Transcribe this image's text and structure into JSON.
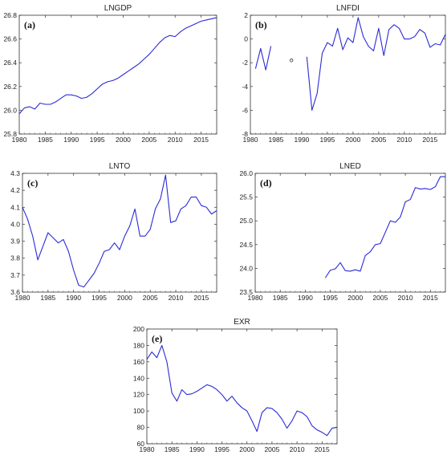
{
  "style": {
    "line_color": "#2b2bd6",
    "axis_color": "#333333"
  },
  "chart_data": [
    {
      "type": "line",
      "title": "LNGDP",
      "panel_label": "(a)",
      "xlim": [
        1980,
        2018
      ],
      "ylim": [
        25.8,
        26.8
      ],
      "xticks": [
        1980,
        1985,
        1990,
        1995,
        2000,
        2005,
        2010,
        2015
      ],
      "yticks": [
        "25.8",
        "26.0",
        "26.2",
        "26.4",
        "26.6",
        "26.8"
      ],
      "x": [
        1980,
        1981,
        1982,
        1983,
        1984,
        1985,
        1986,
        1987,
        1988,
        1989,
        1990,
        1991,
        1992,
        1993,
        1994,
        1995,
        1996,
        1997,
        1998,
        1999,
        2000,
        2001,
        2002,
        2003,
        2004,
        2005,
        2006,
        2007,
        2008,
        2009,
        2010,
        2011,
        2012,
        2013,
        2014,
        2015,
        2016,
        2017,
        2018
      ],
      "y": [
        25.97,
        26.02,
        26.03,
        26.01,
        26.06,
        26.05,
        26.05,
        26.07,
        26.1,
        26.13,
        26.13,
        26.12,
        26.1,
        26.11,
        26.14,
        26.18,
        26.22,
        26.24,
        26.25,
        26.27,
        26.3,
        26.33,
        26.36,
        26.39,
        26.43,
        26.47,
        26.52,
        26.57,
        26.61,
        26.63,
        26.62,
        26.66,
        26.69,
        26.71,
        26.73,
        26.75,
        26.76,
        26.77,
        26.78
      ]
    },
    {
      "type": "line",
      "title": "LNFDI",
      "panel_label": "(b)",
      "xlim": [
        1980,
        2018
      ],
      "ylim": [
        -8,
        2
      ],
      "xticks": [
        1980,
        1985,
        1990,
        1995,
        2000,
        2005,
        2010,
        2015
      ],
      "yticks": [
        "-8",
        "-6",
        "-4",
        "-2",
        "0",
        "2"
      ],
      "x": [
        1980,
        1981,
        1982,
        1983,
        1984,
        1985,
        1986,
        1987,
        1988,
        1989,
        1990,
        1991,
        1992,
        1993,
        1994,
        1995,
        1996,
        1997,
        1998,
        1999,
        2000,
        2001,
        2002,
        2003,
        2004,
        2005,
        2006,
        2007,
        2008,
        2009,
        2010,
        2011,
        2012,
        2013,
        2014,
        2015,
        2016,
        2017,
        2018
      ],
      "y": [
        null,
        -2.5,
        -0.8,
        -2.6,
        -0.6,
        null,
        null,
        null,
        -1.8,
        null,
        null,
        -1.5,
        -6.0,
        -4.6,
        -1.2,
        -0.3,
        -0.6,
        0.9,
        -0.9,
        0.1,
        -0.3,
        1.8,
        0.2,
        -0.6,
        -1.0,
        0.9,
        -1.4,
        0.8,
        1.2,
        0.9,
        0.0,
        0.0,
        0.2,
        0.8,
        0.5,
        -0.7,
        -0.4,
        -0.5,
        0.4
      ],
      "isolated_points": [
        1988
      ]
    },
    {
      "type": "line",
      "title": "LNTO",
      "panel_label": "(c)",
      "xlim": [
        1980,
        2018
      ],
      "ylim": [
        3.6,
        4.3
      ],
      "xticks": [
        1980,
        1985,
        1990,
        1995,
        2000,
        2005,
        2010,
        2015
      ],
      "yticks": [
        "3.6",
        "3.7",
        "3.8",
        "3.9",
        "4.0",
        "4.1",
        "4.2",
        "4.3"
      ],
      "x": [
        1980,
        1981,
        1982,
        1983,
        1984,
        1985,
        1986,
        1987,
        1988,
        1989,
        1990,
        1991,
        1992,
        1993,
        1994,
        1995,
        1996,
        1997,
        1998,
        1999,
        2000,
        2001,
        2002,
        2003,
        2004,
        2005,
        2006,
        2007,
        2008,
        2009,
        2010,
        2011,
        2012,
        2013,
        2014,
        2015,
        2016,
        2017,
        2018
      ],
      "y": [
        4.1,
        4.03,
        3.93,
        3.79,
        3.87,
        3.95,
        3.92,
        3.89,
        3.91,
        3.84,
        3.73,
        3.64,
        3.63,
        3.67,
        3.71,
        3.77,
        3.84,
        3.85,
        3.89,
        3.85,
        3.93,
        3.99,
        4.09,
        3.93,
        3.93,
        3.97,
        4.09,
        4.15,
        4.29,
        4.01,
        4.02,
        4.09,
        4.11,
        4.16,
        4.16,
        4.11,
        4.1,
        4.06,
        4.08
      ]
    },
    {
      "type": "line",
      "title": "LNED",
      "panel_label": "(d)",
      "xlim": [
        1980,
        2018
      ],
      "ylim": [
        23.5,
        26.0
      ],
      "xticks": [
        1980,
        1985,
        1990,
        1995,
        2000,
        2005,
        2010,
        2015
      ],
      "yticks": [
        "23.5",
        "24.0",
        "24.5",
        "25.0",
        "25.5",
        "26.0"
      ],
      "x": [
        1994,
        1995,
        1996,
        1997,
        1998,
        1999,
        2000,
        2001,
        2002,
        2003,
        2004,
        2005,
        2006,
        2007,
        2008,
        2009,
        2010,
        2011,
        2012,
        2013,
        2014,
        2015,
        2016,
        2017,
        2018
      ],
      "y": [
        23.8,
        23.96,
        23.99,
        24.12,
        23.95,
        23.94,
        23.97,
        23.94,
        24.27,
        24.35,
        24.5,
        24.52,
        24.76,
        25.0,
        24.97,
        25.08,
        25.4,
        25.45,
        25.7,
        25.67,
        25.68,
        25.66,
        25.72,
        25.93,
        25.93
      ]
    },
    {
      "type": "line",
      "title": "EXR",
      "panel_label": "(e)",
      "xlim": [
        1980,
        2018
      ],
      "ylim": [
        60,
        200
      ],
      "xticks": [
        1980,
        1985,
        1990,
        1995,
        2000,
        2005,
        2010,
        2015
      ],
      "yticks": [
        "60",
        "80",
        "100",
        "120",
        "140",
        "160",
        "180",
        "200"
      ],
      "x": [
        1980,
        1981,
        1982,
        1983,
        1984,
        1985,
        1986,
        1987,
        1988,
        1989,
        1990,
        1991,
        1992,
        1993,
        1994,
        1995,
        1996,
        1997,
        1998,
        1999,
        2000,
        2001,
        2002,
        2003,
        2004,
        2005,
        2006,
        2007,
        2008,
        2009,
        2010,
        2011,
        2012,
        2013,
        2014,
        2015,
        2016,
        2017,
        2018
      ],
      "y": [
        163,
        172,
        165,
        180,
        160,
        122,
        112,
        126,
        120,
        121,
        124,
        128,
        132,
        130,
        126,
        120,
        112,
        118,
        110,
        104,
        100,
        88,
        75,
        98,
        104,
        103,
        98,
        90,
        79,
        88,
        100,
        98,
        93,
        82,
        77,
        74,
        70,
        79,
        80
      ]
    }
  ]
}
